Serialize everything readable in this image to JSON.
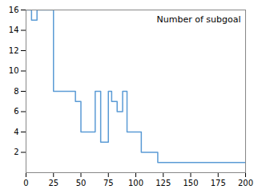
{
  "chart_data": {
    "type": "step",
    "x": [
      0,
      5,
      10,
      20,
      25,
      45,
      50,
      63,
      68,
      75,
      78,
      83,
      88,
      92,
      100,
      105,
      115,
      120,
      130,
      200
    ],
    "series": [
      {
        "name": "Number of subgoal",
        "color": "#5b9bd5",
        "values": [
          16,
          15,
          16,
          16,
          8,
          7,
          4,
          8,
          3,
          8,
          7,
          6,
          8,
          4,
          4,
          2,
          2,
          1,
          1,
          1
        ]
      }
    ],
    "xlim": [
      0,
      200
    ],
    "xticks": [
      0,
      25,
      50,
      75,
      100,
      125,
      150,
      175,
      200
    ],
    "ylim": [
      0,
      16
    ],
    "yticks": [
      2,
      4,
      6,
      8,
      10,
      12,
      14,
      16
    ],
    "legend": "upper right"
  }
}
